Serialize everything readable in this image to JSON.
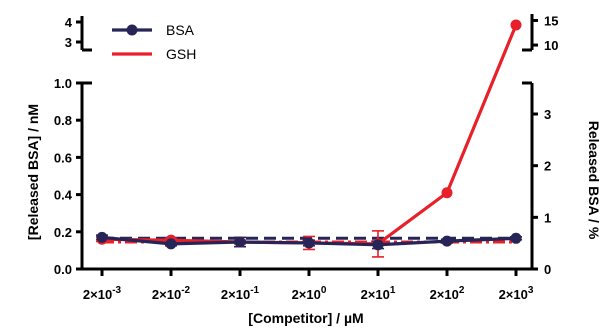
{
  "chart_data": {
    "type": "line",
    "xlabel": "[Competitor] / µM",
    "ylabel": "[Released BSA] / nM",
    "y2label": "Released BSA / %",
    "x_scale": "log",
    "categories": [
      "2×10^-3",
      "2×10^-2",
      "2×10^-1",
      "2×10^0",
      "2×10^1",
      "2×10^2",
      "2×10^3"
    ],
    "x_ticks": [
      {
        "base": "2×10",
        "exp": "-3"
      },
      {
        "base": "2×10",
        "exp": "-2"
      },
      {
        "base": "2×10",
        "exp": "-1"
      },
      {
        "base": "2×10",
        "exp": "0"
      },
      {
        "base": "2×10",
        "exp": "1"
      },
      {
        "base": "2×10",
        "exp": "2"
      },
      {
        "base": "2×10",
        "exp": "3"
      }
    ],
    "x": [
      0.002,
      0.02,
      0.2,
      2,
      20,
      200,
      2000
    ],
    "ylim": [
      0,
      1.0
    ],
    "yticks": [
      "0.0",
      "0.2",
      "0.4",
      "0.6",
      "0.8",
      "1.0"
    ],
    "ylim_break_upper": [
      2.6,
      4.2
    ],
    "yticks_upper": [
      "3",
      "4"
    ],
    "y2lim": [
      0,
      3.6
    ],
    "y2ticks": [
      "0",
      "1",
      "2",
      "3"
    ],
    "y2lim_break_upper": [
      9,
      15.5
    ],
    "y2ticks_upper": [
      "10",
      "15"
    ],
    "legend_position": "top-left",
    "series": [
      {
        "name": "BSA",
        "color": "#272557",
        "marker": "circle",
        "values": [
          0.17,
          0.135,
          0.145,
          0.14,
          0.13,
          0.15,
          0.165
        ],
        "errors": [
          0.012,
          0.01,
          0.025,
          0.015,
          0.02,
          0.01,
          0.008
        ],
        "baseline": 0.165
      },
      {
        "name": "GSH",
        "color": "#e8202a",
        "marker": "circle",
        "values": [
          0.16,
          0.155,
          0.145,
          0.14,
          0.135,
          0.41,
          3.85
        ],
        "errors": [
          0.012,
          0.01,
          0.01,
          0.035,
          0.07,
          0.0,
          0.0
        ],
        "baseline": 0.145
      }
    ]
  }
}
